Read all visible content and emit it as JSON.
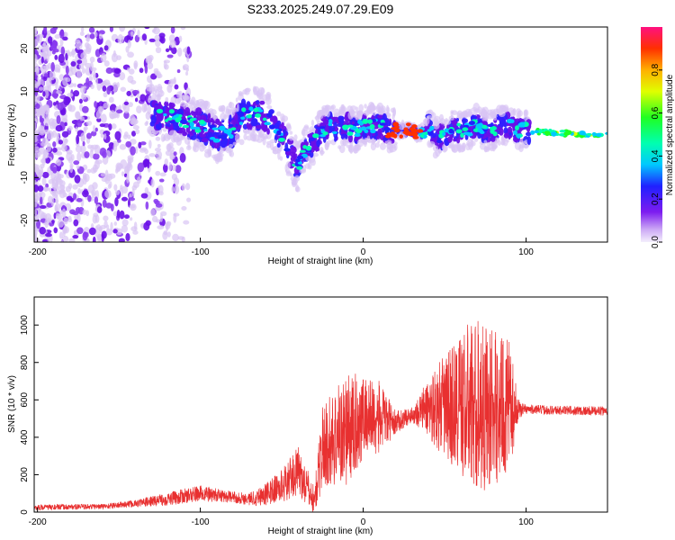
{
  "title": "S233.2025.249.07.29.E09",
  "colors": {
    "snr_line": "#e83030",
    "frame": "#000000",
    "blob_light": "#d8c4f4",
    "blob_mid": "#8a3cf0",
    "blob_dark": "#6a10e8"
  },
  "chart_data": [
    {
      "type": "heatmap",
      "name": "spectrogram",
      "xlabel": "Height of straight line (km)",
      "ylabel": "Frequency (Hz)",
      "xlim": [
        -202,
        150
      ],
      "ylim": [
        -25,
        25
      ],
      "xticks": [
        -200,
        -100,
        0,
        100
      ],
      "xtick_labels": [
        "-200",
        "-100",
        "0",
        "100"
      ],
      "yticks": [
        -20,
        -10,
        0,
        10,
        20
      ],
      "ytick_labels": [
        "-20",
        "-10",
        "0",
        "10",
        "20"
      ],
      "ridge": {
        "x": [
          -125,
          -110,
          -100,
          -90,
          -80,
          -75,
          -70,
          -60,
          -50,
          -45,
          -40,
          -35,
          -30,
          -25,
          -20,
          -15,
          -10,
          -5,
          0,
          5,
          10,
          15,
          20,
          25,
          30,
          35,
          40,
          45,
          50,
          55,
          60,
          65,
          70,
          75,
          80,
          85,
          90,
          95,
          100,
          110,
          120,
          130,
          140,
          150
        ],
        "y": [
          5,
          3,
          2,
          0,
          1,
          4,
          5,
          4,
          0,
          -4,
          -7,
          -3,
          -2,
          1,
          2,
          1,
          2,
          1,
          2,
          2,
          2,
          1,
          1,
          1,
          1,
          0,
          2,
          -1,
          0,
          1,
          1,
          1,
          2,
          1,
          1,
          2,
          2,
          1,
          1,
          0.5,
          0.5,
          0,
          0,
          0
        ]
      },
      "colorbar": {
        "label": "Normalized spectral amplitude",
        "range": [
          0,
          1
        ],
        "ticks": [
          0.0,
          0.2,
          0.4,
          0.6,
          0.8
        ],
        "tick_labels": [
          "0.0",
          "0.2",
          "0.4",
          "0.6",
          "0.8"
        ]
      }
    },
    {
      "type": "line",
      "name": "snr",
      "xlabel": "Height of straight line (km)",
      "ylabel": "SNR (10 * v/v)",
      "xlim": [
        -202,
        150
      ],
      "ylim": [
        0,
        1150
      ],
      "xticks": [
        -200,
        -100,
        0,
        100
      ],
      "xtick_labels": [
        "-200",
        "-100",
        "0",
        "100"
      ],
      "yticks": [
        0,
        200,
        400,
        600,
        800,
        1000
      ],
      "ytick_labels": [
        "0",
        "200",
        "400",
        "600",
        "800",
        "1000"
      ],
      "envelope": {
        "x": [
          -202,
          -160,
          -140,
          -120,
          -100,
          -80,
          -70,
          -60,
          -50,
          -40,
          -30,
          -25,
          -20,
          -15,
          -10,
          -5,
          0,
          10,
          20,
          30,
          40,
          50,
          60,
          70,
          80,
          90,
          95,
          100,
          120,
          150
        ],
        "mean": [
          25,
          30,
          45,
          70,
          100,
          80,
          70,
          95,
          140,
          220,
          60,
          350,
          380,
          420,
          440,
          460,
          520,
          500,
          480,
          520,
          560,
          560,
          580,
          570,
          560,
          560,
          550,
          550,
          545,
          540
        ],
        "amp": [
          15,
          15,
          20,
          35,
          45,
          30,
          35,
          60,
          90,
          130,
          80,
          220,
          260,
          280,
          300,
          280,
          220,
          200,
          60,
          40,
          160,
          280,
          400,
          480,
          420,
          350,
          60,
          25,
          25,
          25
        ]
      }
    }
  ]
}
